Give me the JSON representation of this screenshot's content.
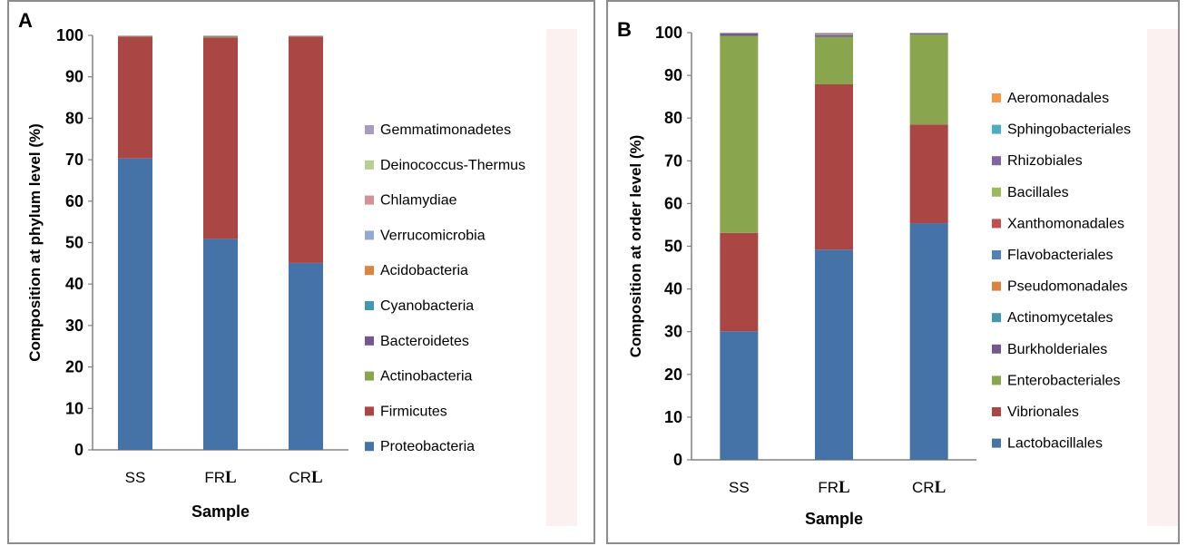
{
  "panels": {
    "a": {
      "letter": "A"
    },
    "b": {
      "letter": "B"
    }
  },
  "chart_data": [
    {
      "type": "bar",
      "stacked": true,
      "categories": [
        "SS",
        "FR",
        "CR"
      ],
      "category_suffix": "L",
      "xlabel": "Sample",
      "ylabel": "Composition at phylum level (%)",
      "ylim": [
        0,
        100
      ],
      "yticks": [
        0,
        10,
        20,
        30,
        40,
        50,
        60,
        70,
        80,
        90,
        100
      ],
      "grid": false,
      "legend_position": "right",
      "series": [
        {
          "name": "Proteobacteria",
          "color": "#4572a7",
          "values": [
            70.3,
            50.9,
            45.1
          ]
        },
        {
          "name": "Firmicutes",
          "color": "#aa4643",
          "values": [
            29.4,
            48.6,
            54.6
          ]
        },
        {
          "name": "Actinobacteria",
          "color": "#89a54e",
          "values": [
            0.1,
            0.2,
            0.1
          ]
        },
        {
          "name": "Bacteroidetes",
          "color": "#71588f",
          "values": [
            0.05,
            0.1,
            0.05
          ]
        },
        {
          "name": "Cyanobacteria",
          "color": "#4198af",
          "values": [
            0.03,
            0.05,
            0.03
          ]
        },
        {
          "name": "Acidobacteria",
          "color": "#db843d",
          "values": [
            0.02,
            0.03,
            0.02
          ]
        },
        {
          "name": "Verrucomicrobia",
          "color": "#93a9cf",
          "values": [
            0.02,
            0.03,
            0.02
          ]
        },
        {
          "name": "Chlamydiae",
          "color": "#d19392",
          "values": [
            0.02,
            0.03,
            0.02
          ]
        },
        {
          "name": "Deinococcus-Thermus",
          "color": "#b9cd96",
          "values": [
            0.02,
            0.03,
            0.02
          ]
        },
        {
          "name": "Gemmatimonadetes",
          "color": "#a99bbd",
          "values": [
            0.02,
            0.03,
            0.02
          ]
        }
      ]
    },
    {
      "type": "bar",
      "stacked": true,
      "categories": [
        "SS",
        "FR",
        "CR"
      ],
      "category_suffix": "L",
      "xlabel": "Sample",
      "ylabel": "Composition at order level (%)",
      "ylim": [
        0,
        100
      ],
      "yticks": [
        0,
        10,
        20,
        30,
        40,
        50,
        60,
        70,
        80,
        90,
        100
      ],
      "grid": false,
      "legend_position": "right",
      "series": [
        {
          "name": "Lactobacillales",
          "color": "#4572a7",
          "values": [
            30.1,
            49.2,
            55.4
          ]
        },
        {
          "name": "Vibrionales",
          "color": "#aa4643",
          "values": [
            23.0,
            38.7,
            23.1
          ]
        },
        {
          "name": "Enterobacteriales",
          "color": "#89a54e",
          "values": [
            46.1,
            11.1,
            21.1
          ]
        },
        {
          "name": "Burkholderiales",
          "color": "#71588f",
          "values": [
            0.6,
            0.4,
            0.2
          ]
        },
        {
          "name": "Actinomycetales",
          "color": "#4198af",
          "values": [
            0.05,
            0.1,
            0.05
          ]
        },
        {
          "name": "Pseudomonadales",
          "color": "#db843d",
          "values": [
            0.05,
            0.1,
            0.03
          ]
        },
        {
          "name": "Flavobacteriales",
          "color": "#4f81bd",
          "values": [
            0.03,
            0.1,
            0.03
          ]
        },
        {
          "name": "Xanthomonadales",
          "color": "#c0504d",
          "values": [
            0.02,
            0.1,
            0.02
          ]
        },
        {
          "name": "Bacillales",
          "color": "#9bbb59",
          "values": [
            0.02,
            0.05,
            0.02
          ]
        },
        {
          "name": "Rhizobiales",
          "color": "#8064a2",
          "values": [
            0.02,
            0.05,
            0.02
          ]
        },
        {
          "name": "Sphingobacteriales",
          "color": "#4bacc6",
          "values": [
            0.02,
            0.03,
            0.02
          ]
        },
        {
          "name": "Aeromonadales",
          "color": "#f79646",
          "values": [
            0.02,
            0.03,
            0.02
          ]
        }
      ]
    }
  ]
}
